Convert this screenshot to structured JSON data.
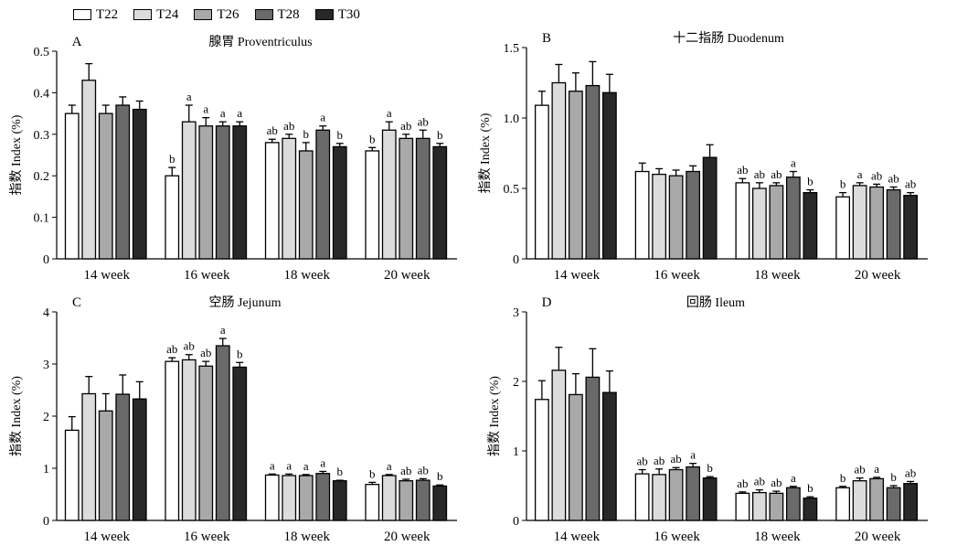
{
  "legend": [
    {
      "name": "T22",
      "color": "#ffffff"
    },
    {
      "name": "T24",
      "color": "#dcdcdc"
    },
    {
      "name": "T26",
      "color": "#a9a9a9"
    },
    {
      "name": "T28",
      "color": "#6a6a6a"
    },
    {
      "name": "T30",
      "color": "#282828"
    }
  ],
  "chart_data": [
    {
      "type": "bar",
      "panel": "A",
      "title": "腺胃 Proventriculus",
      "ylabel": "指数 Index (%)",
      "ylim": [
        0,
        0.5
      ],
      "yticks": [
        "0",
        "0.1",
        "0.2",
        "0.3",
        "0.4",
        "0.5"
      ],
      "categories": [
        "14 week",
        "16 week",
        "18 week",
        "20 week"
      ],
      "series": [
        {
          "name": "T22",
          "values": [
            0.35,
            0.2,
            0.28,
            0.26
          ],
          "errors": [
            0.02,
            0.02,
            0.008,
            0.008
          ],
          "labels": [
            "",
            "b",
            "ab",
            "b"
          ]
        },
        {
          "name": "T24",
          "values": [
            0.43,
            0.33,
            0.29,
            0.31
          ],
          "errors": [
            0.04,
            0.04,
            0.01,
            0.02
          ],
          "labels": [
            "",
            "a",
            "ab",
            "a"
          ]
        },
        {
          "name": "T26",
          "values": [
            0.35,
            0.32,
            0.26,
            0.29
          ],
          "errors": [
            0.02,
            0.02,
            0.02,
            0.01
          ],
          "labels": [
            "",
            "a",
            "b",
            "ab"
          ]
        },
        {
          "name": "T28",
          "values": [
            0.37,
            0.32,
            0.31,
            0.29
          ],
          "errors": [
            0.02,
            0.01,
            0.01,
            0.02
          ],
          "labels": [
            "",
            "a",
            "a",
            "ab"
          ]
        },
        {
          "name": "T30",
          "values": [
            0.36,
            0.32,
            0.27,
            0.27
          ],
          "errors": [
            0.02,
            0.01,
            0.008,
            0.008
          ],
          "labels": [
            "",
            "a",
            "b",
            "b"
          ]
        }
      ]
    },
    {
      "type": "bar",
      "panel": "B",
      "title": "十二指肠 Duodenum",
      "ylabel": "指数 Index (%)",
      "ylim": [
        0,
        1.5
      ],
      "yticks": [
        "0",
        "0.5",
        "1.0",
        "1.5"
      ],
      "categories": [
        "14 week",
        "16 week",
        "18 week",
        "20 week"
      ],
      "series": [
        {
          "name": "T22",
          "values": [
            1.09,
            0.62,
            0.54,
            0.44
          ],
          "errors": [
            0.1,
            0.06,
            0.03,
            0.03
          ],
          "labels": [
            "",
            "",
            "ab",
            "b"
          ]
        },
        {
          "name": "T24",
          "values": [
            1.25,
            0.6,
            0.5,
            0.52
          ],
          "errors": [
            0.13,
            0.04,
            0.04,
            0.02
          ],
          "labels": [
            "",
            "",
            "ab",
            "a"
          ]
        },
        {
          "name": "T26",
          "values": [
            1.19,
            0.59,
            0.52,
            0.51
          ],
          "errors": [
            0.13,
            0.04,
            0.02,
            0.02
          ],
          "labels": [
            "",
            "",
            "ab",
            "ab"
          ]
        },
        {
          "name": "T28",
          "values": [
            1.23,
            0.62,
            0.58,
            0.49
          ],
          "errors": [
            0.17,
            0.04,
            0.04,
            0.02
          ],
          "labels": [
            "",
            "",
            "a",
            "ab"
          ]
        },
        {
          "name": "T30",
          "values": [
            1.18,
            0.72,
            0.47,
            0.45
          ],
          "errors": [
            0.13,
            0.09,
            0.02,
            0.02
          ],
          "labels": [
            "",
            "",
            "b",
            "ab"
          ]
        }
      ]
    },
    {
      "type": "bar",
      "panel": "C",
      "title": "空肠 Jejunum",
      "ylabel": "指数 Index (%)",
      "ylim": [
        0,
        4
      ],
      "yticks": [
        "0",
        "1",
        "2",
        "3",
        "4"
      ],
      "categories": [
        "14 week",
        "16 week",
        "18 week",
        "20 week"
      ],
      "series": [
        {
          "name": "T22",
          "values": [
            1.73,
            3.05,
            0.87,
            0.69
          ],
          "errors": [
            0.26,
            0.07,
            0.02,
            0.04
          ],
          "labels": [
            "",
            "ab",
            "a",
            "b"
          ]
        },
        {
          "name": "T24",
          "values": [
            2.43,
            3.08,
            0.86,
            0.86
          ],
          "errors": [
            0.33,
            0.1,
            0.03,
            0.02
          ],
          "labels": [
            "",
            "ab",
            "a",
            "a"
          ]
        },
        {
          "name": "T26",
          "values": [
            2.1,
            2.96,
            0.86,
            0.76
          ],
          "errors": [
            0.33,
            0.09,
            0.02,
            0.03
          ],
          "labels": [
            "",
            "ab",
            "a",
            "ab"
          ]
        },
        {
          "name": "T28",
          "values": [
            2.42,
            3.35,
            0.9,
            0.77
          ],
          "errors": [
            0.37,
            0.14,
            0.04,
            0.03
          ],
          "labels": [
            "",
            "a",
            "a",
            "ab"
          ]
        },
        {
          "name": "T30",
          "values": [
            2.33,
            2.94,
            0.76,
            0.66
          ],
          "errors": [
            0.33,
            0.09,
            0.01,
            0.02
          ],
          "labels": [
            "",
            "b",
            "b",
            "b"
          ]
        }
      ]
    },
    {
      "type": "bar",
      "panel": "D",
      "title": "回肠 Ileum",
      "ylabel": "指数 Index (%)",
      "ylim": [
        0,
        3
      ],
      "yticks": [
        "0",
        "1",
        "2",
        "3"
      ],
      "categories": [
        "14 week",
        "16 week",
        "18 week",
        "20 week"
      ],
      "series": [
        {
          "name": "T22",
          "values": [
            1.74,
            0.67,
            0.39,
            0.47
          ],
          "errors": [
            0.27,
            0.06,
            0.02,
            0.02
          ],
          "labels": [
            "",
            "ab",
            "ab",
            "b"
          ]
        },
        {
          "name": "T24",
          "values": [
            2.16,
            0.66,
            0.4,
            0.57
          ],
          "errors": [
            0.33,
            0.08,
            0.04,
            0.04
          ],
          "labels": [
            "",
            "ab",
            "ab",
            "ab"
          ]
        },
        {
          "name": "T26",
          "values": [
            1.81,
            0.73,
            0.39,
            0.6
          ],
          "errors": [
            0.3,
            0.03,
            0.03,
            0.02
          ],
          "labels": [
            "",
            "ab",
            "ab",
            "a"
          ]
        },
        {
          "name": "T28",
          "values": [
            2.06,
            0.77,
            0.47,
            0.47
          ],
          "errors": [
            0.41,
            0.05,
            0.02,
            0.03
          ],
          "labels": [
            "",
            "a",
            "a",
            "b"
          ]
        },
        {
          "name": "T30",
          "values": [
            1.84,
            0.61,
            0.32,
            0.53
          ],
          "errors": [
            0.31,
            0.02,
            0.02,
            0.03
          ],
          "labels": [
            "",
            "b",
            "b",
            "ab"
          ]
        }
      ]
    }
  ]
}
